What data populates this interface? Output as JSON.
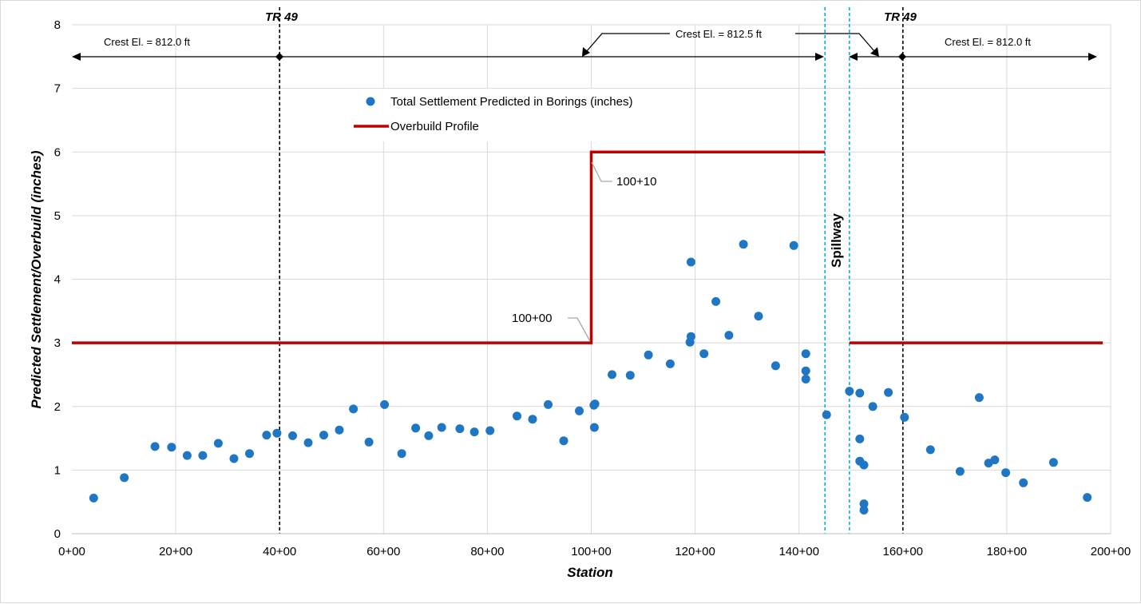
{
  "chart_data": {
    "type": "scatter",
    "title": "",
    "xlabel": "Station",
    "ylabel": "Predicted Settlement/Overbuild (inches)",
    "xlim": [
      0,
      200
    ],
    "ylim": [
      0,
      8
    ],
    "grid": true,
    "legend_position": "upper-center",
    "x_ticks": [
      "0+00",
      "20+00",
      "40+00",
      "60+00",
      "80+00",
      "100+00",
      "120+00",
      "140+00",
      "160+00",
      "180+00",
      "200+00"
    ],
    "y_ticks": [
      "0",
      "1",
      "2",
      "3",
      "4",
      "5",
      "6",
      "7",
      "8"
    ],
    "series": [
      {
        "name": "Total Settlement Predicted in Borings (inches)",
        "kind": "scatter",
        "color": "#1f77c4",
        "points": [
          [
            4.2,
            0.56
          ],
          [
            10.1,
            0.88
          ],
          [
            16.0,
            1.37
          ],
          [
            19.2,
            1.36
          ],
          [
            22.2,
            1.23
          ],
          [
            25.2,
            1.23
          ],
          [
            28.2,
            1.42
          ],
          [
            31.2,
            1.18
          ],
          [
            34.2,
            1.26
          ],
          [
            37.5,
            1.55
          ],
          [
            39.5,
            1.58
          ],
          [
            42.5,
            1.54
          ],
          [
            45.5,
            1.43
          ],
          [
            48.5,
            1.55
          ],
          [
            51.5,
            1.63
          ],
          [
            54.2,
            1.96
          ],
          [
            57.2,
            1.44
          ],
          [
            60.2,
            2.03
          ],
          [
            63.5,
            1.26
          ],
          [
            66.2,
            1.66
          ],
          [
            68.7,
            1.54
          ],
          [
            71.2,
            1.67
          ],
          [
            74.7,
            1.65
          ],
          [
            77.5,
            1.6
          ],
          [
            80.5,
            1.62
          ],
          [
            85.7,
            1.85
          ],
          [
            88.7,
            1.8
          ],
          [
            91.7,
            2.03
          ],
          [
            94.7,
            1.46
          ],
          [
            97.7,
            1.93
          ],
          [
            100.5,
            2.02
          ],
          [
            100.7,
            2.04
          ],
          [
            100.6,
            1.67
          ],
          [
            104.0,
            2.5
          ],
          [
            107.5,
            2.49
          ],
          [
            111.0,
            2.81
          ],
          [
            115.2,
            2.67
          ],
          [
            119.2,
            4.27
          ],
          [
            119.2,
            3.1
          ],
          [
            119.0,
            3.01
          ],
          [
            121.7,
            2.83
          ],
          [
            124.0,
            3.65
          ],
          [
            126.5,
            3.12
          ],
          [
            129.3,
            4.55
          ],
          [
            132.2,
            3.42
          ],
          [
            135.5,
            2.64
          ],
          [
            139.0,
            4.53
          ],
          [
            141.3,
            2.83
          ],
          [
            141.3,
            2.56
          ],
          [
            141.3,
            2.43
          ],
          [
            145.3,
            1.87
          ],
          [
            149.7,
            2.24
          ],
          [
            151.7,
            2.21
          ],
          [
            151.7,
            1.49
          ],
          [
            151.7,
            1.14
          ],
          [
            152.5,
            1.08
          ],
          [
            152.5,
            0.47
          ],
          [
            152.5,
            0.37
          ],
          [
            154.2,
            2.0
          ],
          [
            157.2,
            2.22
          ],
          [
            160.3,
            1.83
          ],
          [
            165.3,
            1.32
          ],
          [
            171.0,
            0.98
          ],
          [
            174.7,
            2.14
          ],
          [
            176.5,
            1.11
          ],
          [
            177.7,
            1.16
          ],
          [
            179.8,
            0.96
          ],
          [
            183.2,
            0.8
          ],
          [
            189.0,
            1.12
          ],
          [
            195.5,
            0.57
          ]
        ]
      },
      {
        "name": "Overbuild Profile",
        "kind": "step-line",
        "color": "#c00000",
        "segments": [
          [
            [
              0,
              3
            ],
            [
              100,
              3
            ],
            [
              100,
              6
            ],
            [
              145,
              6
            ]
          ],
          [
            [
              149.7,
              3
            ],
            [
              198.5,
              3
            ]
          ]
        ]
      }
    ],
    "vertical_lines": [
      {
        "x": 40,
        "color": "#000000",
        "style": "dashed"
      },
      {
        "x": 160,
        "color": "#000000",
        "style": "dashed"
      },
      {
        "x": 145,
        "color": "#00b0f0",
        "style": "dashed"
      },
      {
        "x": 149.7,
        "color": "#00b0f0",
        "style": "dashed"
      }
    ],
    "annotations": {
      "tr_left": "TR 49",
      "tr_right": "TR 49",
      "crest_left": "Crest El. = 812.0 ft",
      "crest_mid": "Crest El. = 812.5 ft",
      "crest_right": "Crest El. = 812.0 ft",
      "station_start": "100+00",
      "station_end": "100+10",
      "spillway": "Spillway"
    }
  }
}
